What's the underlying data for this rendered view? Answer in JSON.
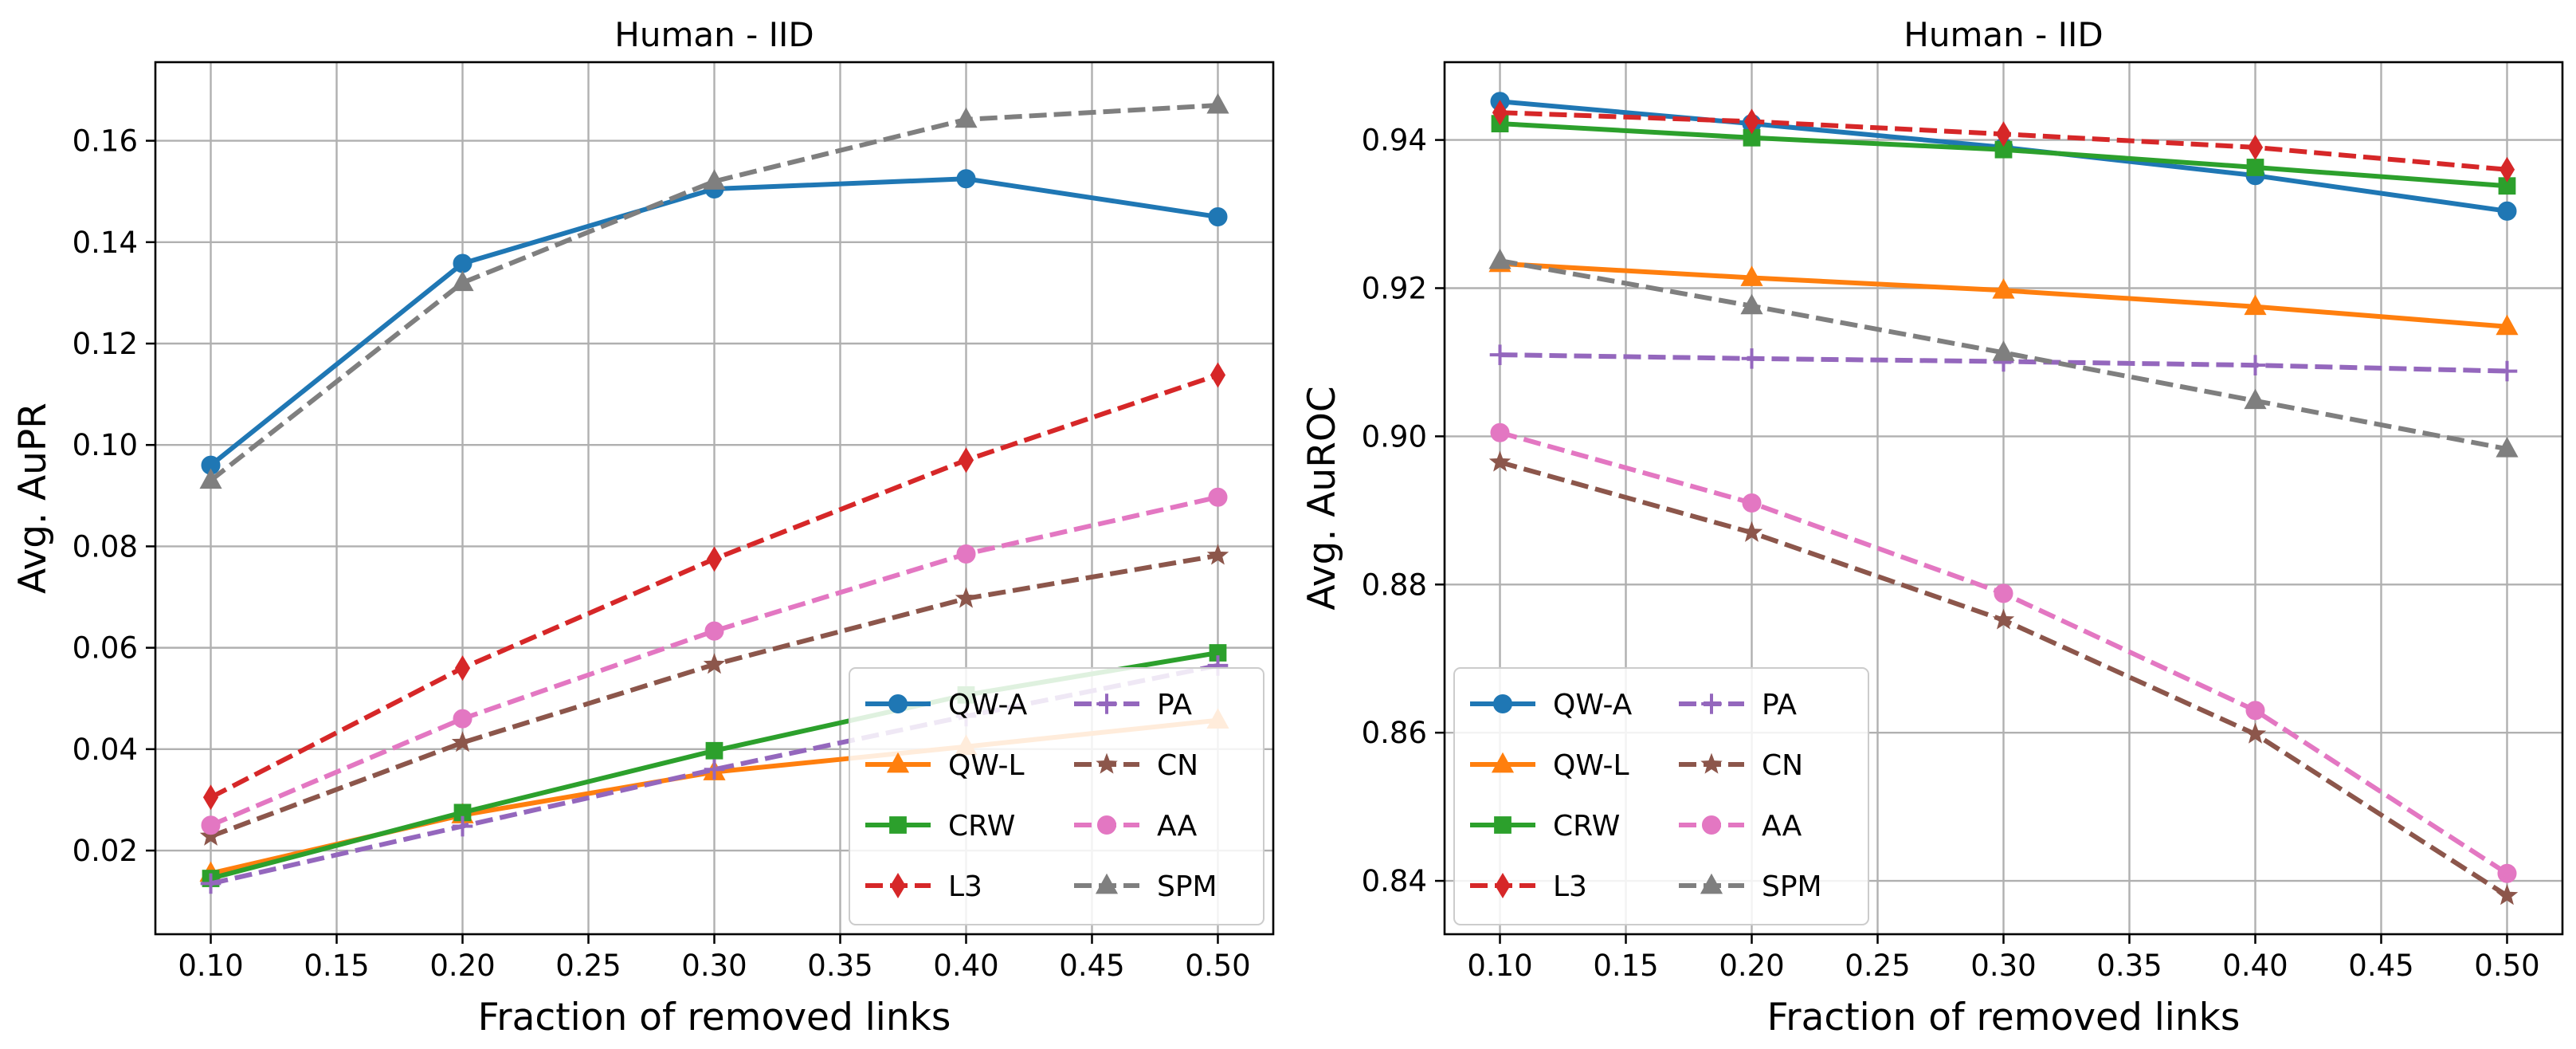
{
  "chart_data": [
    {
      "type": "line",
      "title": "Human - IID",
      "xlabel": "Fraction of removed links",
      "ylabel": "Avg. AuPR",
      "x": [
        0.1,
        0.2,
        0.3,
        0.4,
        0.5
      ],
      "xlim": [
        0.078,
        0.522
      ],
      "ylim": [
        0.0035,
        0.1755
      ],
      "xticks": [
        0.1,
        0.15,
        0.2,
        0.25,
        0.3,
        0.35,
        0.4,
        0.45,
        0.5
      ],
      "xtick_labels": [
        "0.10",
        "0.15",
        "0.20",
        "0.25",
        "0.30",
        "0.35",
        "0.40",
        "0.45",
        "0.50"
      ],
      "yticks": [
        0.02,
        0.04,
        0.06,
        0.08,
        0.1,
        0.12,
        0.14,
        0.16
      ],
      "ytick_labels": [
        "0.02",
        "0.04",
        "0.06",
        "0.08",
        "0.10",
        "0.12",
        "0.14",
        "0.16"
      ],
      "grid": true,
      "legend_position": "lower-right",
      "series": [
        {
          "name": "QW-A",
          "color": "#1f77b4",
          "marker": "circle",
          "dash": "solid",
          "values": [
            0.096,
            0.1358,
            0.1505,
            0.1525,
            0.145
          ]
        },
        {
          "name": "QW-L",
          "color": "#ff7f0e",
          "marker": "triangle",
          "dash": "solid",
          "values": [
            0.0155,
            0.027,
            0.0355,
            0.0405,
            0.0457
          ]
        },
        {
          "name": "CRW",
          "color": "#2ca02c",
          "marker": "square",
          "dash": "solid",
          "values": [
            0.0145,
            0.0275,
            0.0397,
            0.0507,
            0.059
          ]
        },
        {
          "name": "L3",
          "color": "#d62728",
          "marker": "diamond",
          "dash": "dashed",
          "values": [
            0.0305,
            0.056,
            0.0775,
            0.097,
            0.1138
          ]
        },
        {
          "name": "PA",
          "color": "#9467bd",
          "marker": "plus",
          "dash": "dashed",
          "values": [
            0.0135,
            0.0248,
            0.036,
            0.0465,
            0.0565
          ]
        },
        {
          "name": "CN",
          "color": "#8c564b",
          "marker": "star",
          "dash": "dashed",
          "values": [
            0.0228,
            0.0413,
            0.0567,
            0.0697,
            0.0782
          ]
        },
        {
          "name": "AA",
          "color": "#e377c2",
          "marker": "circle",
          "dash": "dashed",
          "values": [
            0.025,
            0.046,
            0.0633,
            0.0785,
            0.0897
          ]
        },
        {
          "name": "SPM",
          "color": "#7f7f7f",
          "marker": "triangle",
          "dash": "dashed",
          "values": [
            0.093,
            0.132,
            0.152,
            0.1642,
            0.167
          ]
        }
      ]
    },
    {
      "type": "line",
      "title": "Human - IID",
      "xlabel": "Fraction of removed links",
      "ylabel": "Avg. AuROC",
      "x": [
        0.1,
        0.2,
        0.3,
        0.4,
        0.5
      ],
      "xlim": [
        0.078,
        0.522
      ],
      "ylim": [
        0.8328,
        0.9505
      ],
      "xticks": [
        0.1,
        0.15,
        0.2,
        0.25,
        0.3,
        0.35,
        0.4,
        0.45,
        0.5
      ],
      "xtick_labels": [
        "0.10",
        "0.15",
        "0.20",
        "0.25",
        "0.30",
        "0.35",
        "0.40",
        "0.45",
        "0.50"
      ],
      "yticks": [
        0.84,
        0.86,
        0.88,
        0.9,
        0.92,
        0.94
      ],
      "ytick_labels": [
        "0.84",
        "0.86",
        "0.88",
        "0.90",
        "0.92",
        "0.94"
      ],
      "grid": true,
      "legend_position": "lower-left",
      "series": [
        {
          "name": "QW-A",
          "color": "#1f77b4",
          "marker": "circle",
          "dash": "solid",
          "values": [
            0.9452,
            0.9422,
            0.939,
            0.9352,
            0.9304
          ]
        },
        {
          "name": "QW-L",
          "color": "#ff7f0e",
          "marker": "triangle",
          "dash": "solid",
          "values": [
            0.9233,
            0.9214,
            0.9197,
            0.9175,
            0.9148
          ]
        },
        {
          "name": "CRW",
          "color": "#2ca02c",
          "marker": "square",
          "dash": "solid",
          "values": [
            0.9422,
            0.9403,
            0.9387,
            0.9363,
            0.9338
          ]
        },
        {
          "name": "L3",
          "color": "#d62728",
          "marker": "diamond",
          "dash": "dashed",
          "values": [
            0.9437,
            0.9425,
            0.9408,
            0.939,
            0.936
          ]
        },
        {
          "name": "PA",
          "color": "#9467bd",
          "marker": "plus",
          "dash": "dashed",
          "values": [
            0.911,
            0.9105,
            0.9101,
            0.9096,
            0.9088
          ]
        },
        {
          "name": "CN",
          "color": "#8c564b",
          "marker": "star",
          "dash": "dashed",
          "values": [
            0.8965,
            0.887,
            0.8752,
            0.8598,
            0.838
          ]
        },
        {
          "name": "AA",
          "color": "#e377c2",
          "marker": "circle",
          "dash": "dashed",
          "values": [
            0.9005,
            0.891,
            0.8788,
            0.863,
            0.841
          ]
        },
        {
          "name": "SPM",
          "color": "#7f7f7f",
          "marker": "triangle",
          "dash": "dashed",
          "values": [
            0.9237,
            0.9176,
            0.9113,
            0.9048,
            0.8983
          ]
        }
      ]
    }
  ]
}
